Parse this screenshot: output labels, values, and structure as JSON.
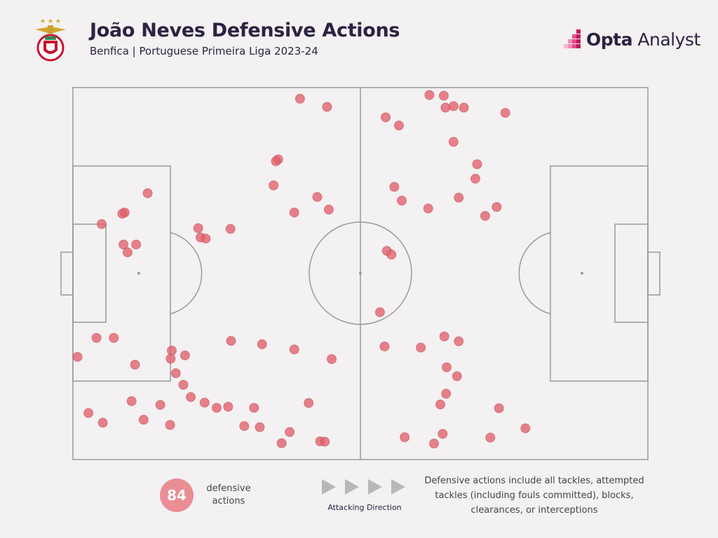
{
  "header": {
    "title": "João Neves Defensive Actions",
    "subtitle": "Benfica | Portuguese Primeira Liga 2023-24",
    "brand_bold": "Opta",
    "brand_light": " Analyst"
  },
  "colors": {
    "marker": "#e0606c",
    "marker_stroke": "#c94a57",
    "badge": "#ea8d94",
    "pitch_line": "#9a9a9a",
    "background": "#f3f1f2",
    "text": "#2b2340",
    "brand_accent": "#c2185b"
  },
  "footer": {
    "count": "84",
    "count_label": "defensive actions",
    "direction_label": "Attacking Direction",
    "note": "Defensive actions include all tackles, attempted tackles (including fouls committed), blocks, clearances, or interceptions"
  },
  "chart_data": {
    "type": "scatter",
    "title": "João Neves Defensive Actions",
    "subtitle": "Benfica | Portuguese Primeira Liga 2023-24",
    "xlim": [
      0,
      100
    ],
    "ylim": [
      0,
      100
    ],
    "x_direction": "attacking left to right",
    "points": [
      [
        39.5,
        3
      ],
      [
        44.2,
        5.2
      ],
      [
        64.8,
        5.4
      ],
      [
        66.2,
        5.0
      ],
      [
        68.0,
        5.4
      ],
      [
        75.2,
        6.8
      ],
      [
        56.7,
        10.2
      ],
      [
        66.2,
        14.6
      ],
      [
        35.7,
        19.3
      ],
      [
        35.3,
        19.8
      ],
      [
        70.3,
        20.6
      ],
      [
        70.0,
        24.5
      ],
      [
        34.9,
        26.3
      ],
      [
        55.9,
        26.7
      ],
      [
        13.0,
        28.4
      ],
      [
        42.5,
        29.4
      ],
      [
        67.1,
        29.6
      ],
      [
        9.0,
        33.6
      ],
      [
        8.6,
        33.9
      ],
      [
        38.5,
        33.6
      ],
      [
        44.5,
        32.8
      ],
      [
        57.2,
        30.4
      ],
      [
        61.8,
        32.5
      ],
      [
        73.7,
        32.1
      ],
      [
        71.7,
        34.5
      ],
      [
        5.0,
        36.7
      ],
      [
        21.8,
        37.8
      ],
      [
        27.4,
        38.0
      ],
      [
        22.2,
        40.3
      ],
      [
        23.1,
        40.6
      ],
      [
        9.5,
        44.3
      ],
      [
        8.8,
        42.2
      ],
      [
        11.0,
        42.2
      ],
      [
        54.6,
        43.9
      ],
      [
        55.4,
        44.9
      ],
      [
        53.4,
        60.4
      ],
      [
        4.1,
        67.3
      ],
      [
        7.1,
        67.3
      ],
      [
        27.5,
        68.1
      ],
      [
        32.9,
        69.0
      ],
      [
        38.5,
        70.4
      ],
      [
        54.2,
        69.6
      ],
      [
        67.1,
        68.2
      ],
      [
        64.6,
        66.9
      ],
      [
        60.5,
        69.9
      ],
      [
        17.2,
        70.7
      ],
      [
        17.0,
        72.9
      ],
      [
        0.8,
        72.4
      ],
      [
        19.5,
        72.0
      ],
      [
        10.8,
        74.5
      ],
      [
        17.9,
        76.8
      ],
      [
        65.0,
        75.2
      ],
      [
        45.0,
        73.0
      ],
      [
        66.8,
        77.6
      ],
      [
        19.2,
        79.9
      ],
      [
        64.9,
        82.3
      ],
      [
        20.5,
        83.2
      ],
      [
        22.9,
        84.7
      ],
      [
        27.0,
        85.8
      ],
      [
        10.2,
        84.3
      ],
      [
        15.2,
        85.3
      ],
      [
        41.0,
        84.8
      ],
      [
        31.5,
        86.1
      ],
      [
        74.1,
        86.2
      ],
      [
        2.7,
        87.5
      ],
      [
        5.2,
        90.1
      ],
      [
        12.3,
        89.3
      ],
      [
        16.9,
        90.7
      ],
      [
        32.5,
        91.3
      ],
      [
        29.8,
        91.0
      ],
      [
        25.0,
        86.1
      ],
      [
        78.7,
        91.6
      ],
      [
        63.9,
        85.2
      ],
      [
        57.7,
        94.0
      ],
      [
        64.3,
        93.1
      ],
      [
        62.8,
        95.7
      ],
      [
        72.6,
        94.1
      ],
      [
        43.0,
        95.1
      ],
      [
        43.8,
        95.2
      ],
      [
        36.3,
        95.6
      ],
      [
        37.7,
        92.6
      ],
      [
        54.4,
        8.0
      ],
      [
        62.0,
        2.0
      ],
      [
        64.5,
        2.2
      ]
    ]
  }
}
